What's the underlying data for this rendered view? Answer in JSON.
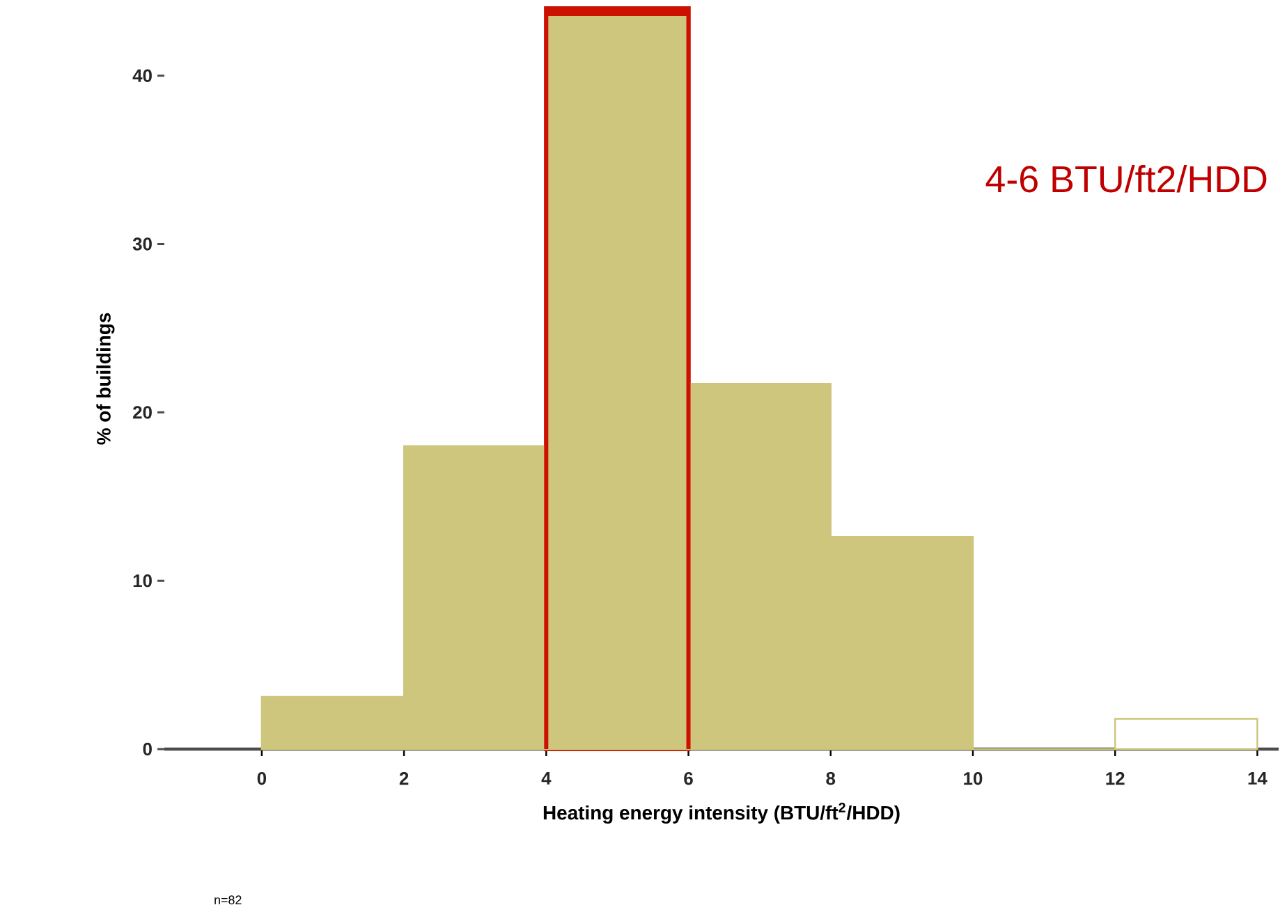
{
  "chart_data": {
    "type": "histogram",
    "xlabel": "Heating energy intensity (BTU/ft$^{2}$/HDD)",
    "ylabel": "% of buildings",
    "bins": [
      0,
      2,
      4,
      6,
      8,
      10,
      12,
      14
    ],
    "values": [
      3.1,
      18.0,
      43.5,
      21.7,
      12.6,
      0,
      1.8
    ],
    "color": "#cdc67c",
    "colors": [
      "#cdc67c",
      "#cdc67c",
      "#cdc67c",
      "#cdc67c",
      "#cdc67c",
      "#cdc67c",
      "#ffffff"
    ],
    "xlim": [
      -1.37,
      14.3
    ],
    "ylim": [
      0,
      44
    ],
    "bands": [
      {
        "axis": "x",
        "from": 4,
        "to": 6,
        "color": "#cc1100"
      }
    ],
    "xticks": [
      0,
      2,
      4,
      6,
      8,
      10,
      12,
      14
    ],
    "yticks": [
      0,
      10,
      20,
      30,
      40
    ],
    "grid": false,
    "annotations": [
      "4-6 BTU/ft2/HDD",
      "n=82"
    ]
  }
}
